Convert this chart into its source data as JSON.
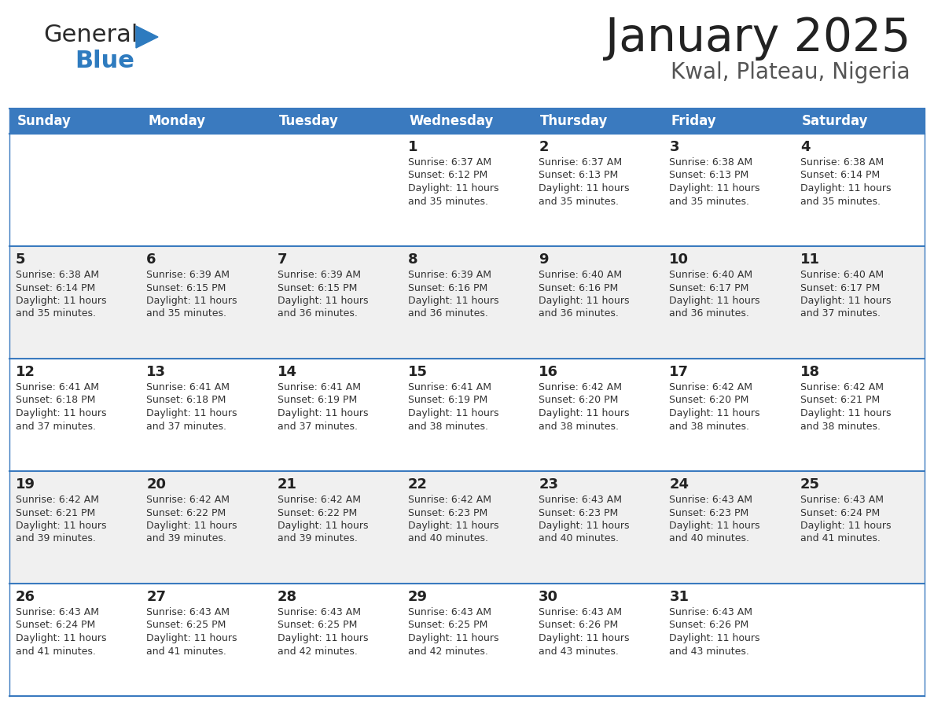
{
  "title": "January 2025",
  "subtitle": "Kwal, Plateau, Nigeria",
  "header_color": "#3a7abf",
  "header_text_color": "#ffffff",
  "bg_color": "#ffffff",
  "row_alt_color": "#f0f0f0",
  "border_color": "#3a7abf",
  "cell_text_color": "#222222",
  "info_text_color": "#333333",
  "days_of_week": [
    "Sunday",
    "Monday",
    "Tuesday",
    "Wednesday",
    "Thursday",
    "Friday",
    "Saturday"
  ],
  "weeks": [
    [
      {
        "day": null,
        "info": null
      },
      {
        "day": null,
        "info": null
      },
      {
        "day": null,
        "info": null
      },
      {
        "day": 1,
        "info": {
          "sunrise": "6:37 AM",
          "sunset": "6:12 PM",
          "daylight_h": "11 hours",
          "daylight_m": "35 minutes"
        }
      },
      {
        "day": 2,
        "info": {
          "sunrise": "6:37 AM",
          "sunset": "6:13 PM",
          "daylight_h": "11 hours",
          "daylight_m": "35 minutes"
        }
      },
      {
        "day": 3,
        "info": {
          "sunrise": "6:38 AM",
          "sunset": "6:13 PM",
          "daylight_h": "11 hours",
          "daylight_m": "35 minutes"
        }
      },
      {
        "day": 4,
        "info": {
          "sunrise": "6:38 AM",
          "sunset": "6:14 PM",
          "daylight_h": "11 hours",
          "daylight_m": "35 minutes"
        }
      }
    ],
    [
      {
        "day": 5,
        "info": {
          "sunrise": "6:38 AM",
          "sunset": "6:14 PM",
          "daylight_h": "11 hours",
          "daylight_m": "35 minutes"
        }
      },
      {
        "day": 6,
        "info": {
          "sunrise": "6:39 AM",
          "sunset": "6:15 PM",
          "daylight_h": "11 hours",
          "daylight_m": "35 minutes"
        }
      },
      {
        "day": 7,
        "info": {
          "sunrise": "6:39 AM",
          "sunset": "6:15 PM",
          "daylight_h": "11 hours",
          "daylight_m": "36 minutes"
        }
      },
      {
        "day": 8,
        "info": {
          "sunrise": "6:39 AM",
          "sunset": "6:16 PM",
          "daylight_h": "11 hours",
          "daylight_m": "36 minutes"
        }
      },
      {
        "day": 9,
        "info": {
          "sunrise": "6:40 AM",
          "sunset": "6:16 PM",
          "daylight_h": "11 hours",
          "daylight_m": "36 minutes"
        }
      },
      {
        "day": 10,
        "info": {
          "sunrise": "6:40 AM",
          "sunset": "6:17 PM",
          "daylight_h": "11 hours",
          "daylight_m": "36 minutes"
        }
      },
      {
        "day": 11,
        "info": {
          "sunrise": "6:40 AM",
          "sunset": "6:17 PM",
          "daylight_h": "11 hours",
          "daylight_m": "37 minutes"
        }
      }
    ],
    [
      {
        "day": 12,
        "info": {
          "sunrise": "6:41 AM",
          "sunset": "6:18 PM",
          "daylight_h": "11 hours",
          "daylight_m": "37 minutes"
        }
      },
      {
        "day": 13,
        "info": {
          "sunrise": "6:41 AM",
          "sunset": "6:18 PM",
          "daylight_h": "11 hours",
          "daylight_m": "37 minutes"
        }
      },
      {
        "day": 14,
        "info": {
          "sunrise": "6:41 AM",
          "sunset": "6:19 PM",
          "daylight_h": "11 hours",
          "daylight_m": "37 minutes"
        }
      },
      {
        "day": 15,
        "info": {
          "sunrise": "6:41 AM",
          "sunset": "6:19 PM",
          "daylight_h": "11 hours",
          "daylight_m": "38 minutes"
        }
      },
      {
        "day": 16,
        "info": {
          "sunrise": "6:42 AM",
          "sunset": "6:20 PM",
          "daylight_h": "11 hours",
          "daylight_m": "38 minutes"
        }
      },
      {
        "day": 17,
        "info": {
          "sunrise": "6:42 AM",
          "sunset": "6:20 PM",
          "daylight_h": "11 hours",
          "daylight_m": "38 minutes"
        }
      },
      {
        "day": 18,
        "info": {
          "sunrise": "6:42 AM",
          "sunset": "6:21 PM",
          "daylight_h": "11 hours",
          "daylight_m": "38 minutes"
        }
      }
    ],
    [
      {
        "day": 19,
        "info": {
          "sunrise": "6:42 AM",
          "sunset": "6:21 PM",
          "daylight_h": "11 hours",
          "daylight_m": "39 minutes"
        }
      },
      {
        "day": 20,
        "info": {
          "sunrise": "6:42 AM",
          "sunset": "6:22 PM",
          "daylight_h": "11 hours",
          "daylight_m": "39 minutes"
        }
      },
      {
        "day": 21,
        "info": {
          "sunrise": "6:42 AM",
          "sunset": "6:22 PM",
          "daylight_h": "11 hours",
          "daylight_m": "39 minutes"
        }
      },
      {
        "day": 22,
        "info": {
          "sunrise": "6:42 AM",
          "sunset": "6:23 PM",
          "daylight_h": "11 hours",
          "daylight_m": "40 minutes"
        }
      },
      {
        "day": 23,
        "info": {
          "sunrise": "6:43 AM",
          "sunset": "6:23 PM",
          "daylight_h": "11 hours",
          "daylight_m": "40 minutes"
        }
      },
      {
        "day": 24,
        "info": {
          "sunrise": "6:43 AM",
          "sunset": "6:23 PM",
          "daylight_h": "11 hours",
          "daylight_m": "40 minutes"
        }
      },
      {
        "day": 25,
        "info": {
          "sunrise": "6:43 AM",
          "sunset": "6:24 PM",
          "daylight_h": "11 hours",
          "daylight_m": "41 minutes"
        }
      }
    ],
    [
      {
        "day": 26,
        "info": {
          "sunrise": "6:43 AM",
          "sunset": "6:24 PM",
          "daylight_h": "11 hours",
          "daylight_m": "41 minutes"
        }
      },
      {
        "day": 27,
        "info": {
          "sunrise": "6:43 AM",
          "sunset": "6:25 PM",
          "daylight_h": "11 hours",
          "daylight_m": "41 minutes"
        }
      },
      {
        "day": 28,
        "info": {
          "sunrise": "6:43 AM",
          "sunset": "6:25 PM",
          "daylight_h": "11 hours",
          "daylight_m": "42 minutes"
        }
      },
      {
        "day": 29,
        "info": {
          "sunrise": "6:43 AM",
          "sunset": "6:25 PM",
          "daylight_h": "11 hours",
          "daylight_m": "42 minutes"
        }
      },
      {
        "day": 30,
        "info": {
          "sunrise": "6:43 AM",
          "sunset": "6:26 PM",
          "daylight_h": "11 hours",
          "daylight_m": "43 minutes"
        }
      },
      {
        "day": 31,
        "info": {
          "sunrise": "6:43 AM",
          "sunset": "6:26 PM",
          "daylight_h": "11 hours",
          "daylight_m": "43 minutes"
        }
      },
      {
        "day": null,
        "info": null
      }
    ]
  ]
}
